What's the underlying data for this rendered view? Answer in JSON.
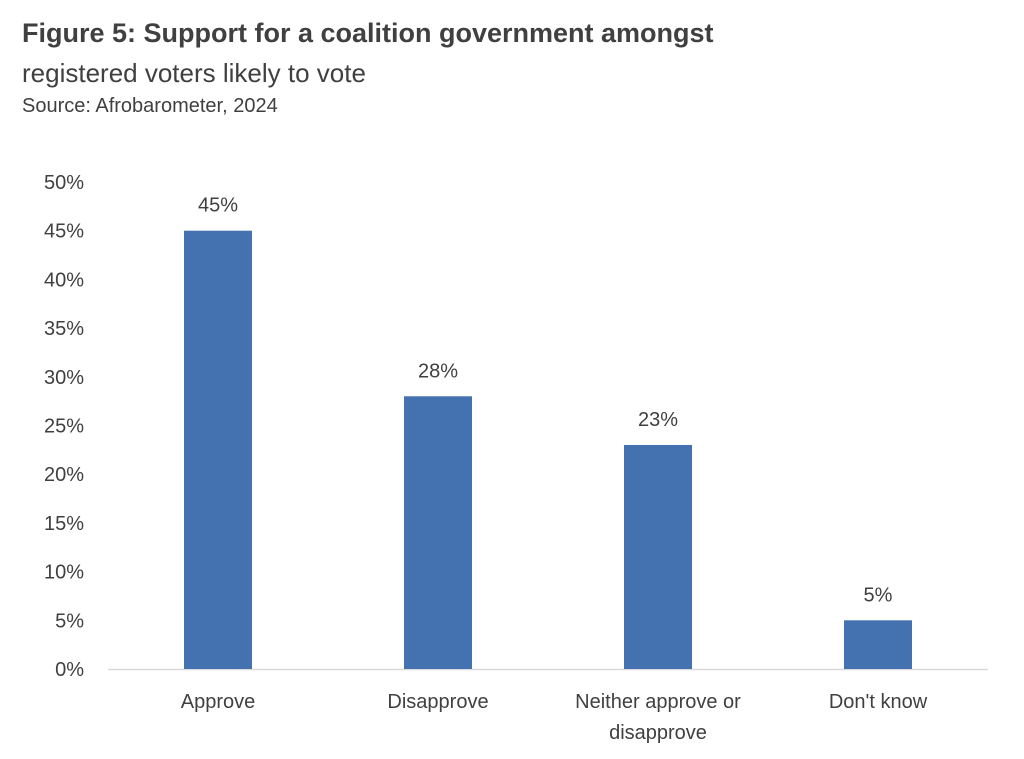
{
  "header": {
    "title": "Figure 5: Support for a coalition government amongst",
    "subtitle": "registered voters likely to vote",
    "source": "Source: Afrobarometer, 2024"
  },
  "chart_data": {
    "type": "bar",
    "categories": [
      "Approve",
      "Disapprove",
      "Neither approve or disapprove",
      "Don't know"
    ],
    "category_lines": [
      [
        "Approve"
      ],
      [
        "Disapprove"
      ],
      [
        "Neither approve or",
        "disapprove"
      ],
      [
        "Don't know"
      ]
    ],
    "values": [
      45,
      28,
      23,
      5
    ],
    "data_labels": [
      "45%",
      "28%",
      "23%",
      "5%"
    ],
    "ylim": [
      0,
      50
    ],
    "ytick_step": 5,
    "ytick_labels": [
      "0%",
      "5%",
      "10%",
      "15%",
      "20%",
      "25%",
      "30%",
      "35%",
      "40%",
      "45%",
      "50%"
    ],
    "grid": false,
    "legend": "none",
    "bar_color": "#4472b0",
    "axis_color": "#d9d9d9"
  }
}
